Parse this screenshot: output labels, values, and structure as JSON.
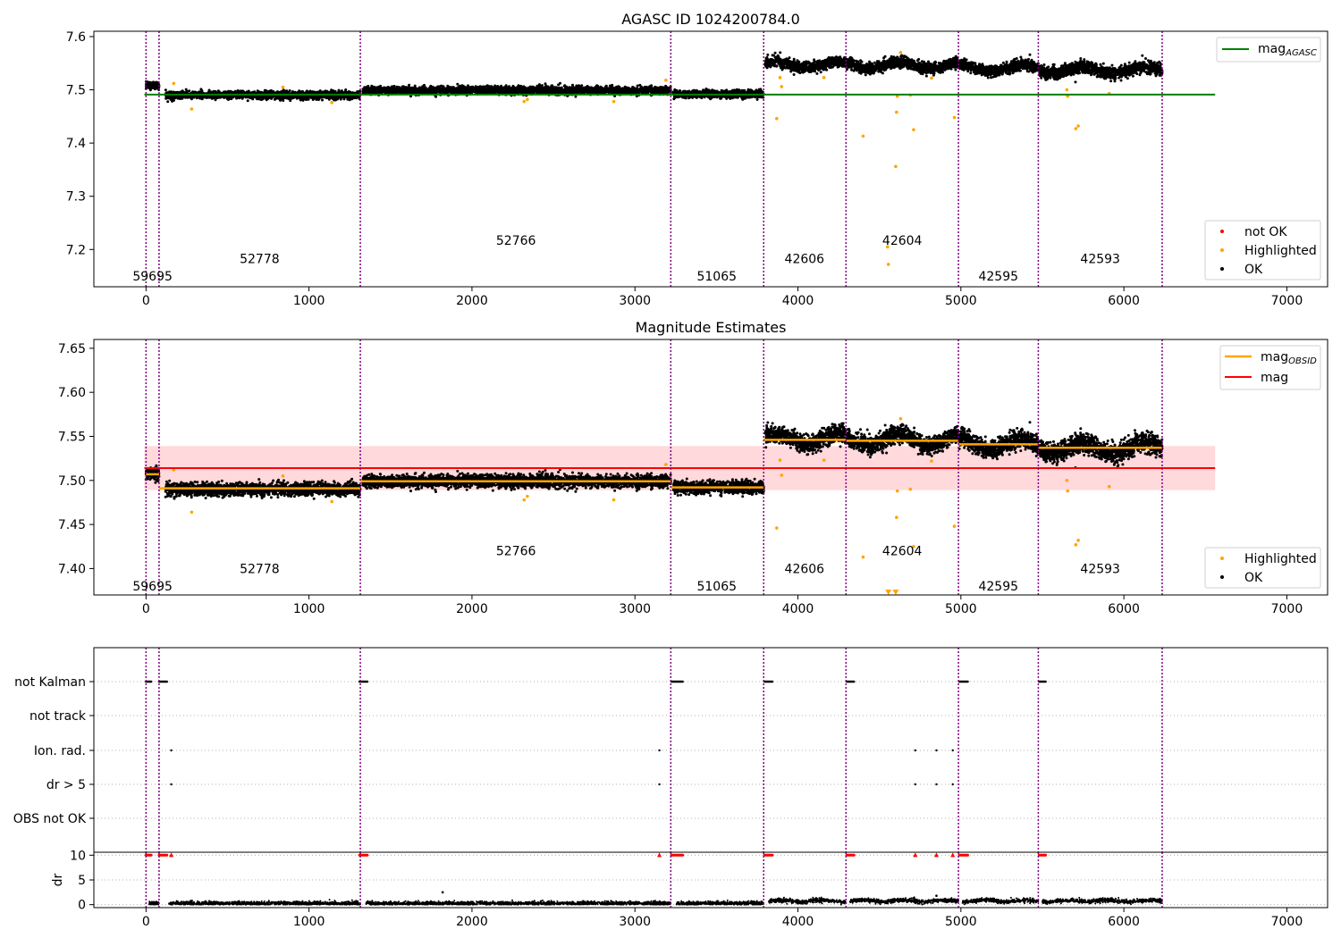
{
  "figure": {
    "title_top": "AGASC ID 1024200784.0",
    "title_middle": "Magnitude Estimates"
  },
  "colors": {
    "ok": "#000000",
    "highlighted": "#ffa500",
    "not_ok": "#ff0000",
    "agasc_line": "#008000",
    "obsid_line": "#ffa500",
    "mag_line": "#ff0000",
    "mag_band": "#ffd9dc",
    "obs_boundary": "#800080",
    "grid": "#b0b0b0"
  },
  "chart_data": [
    {
      "type": "scatter",
      "panel": "top",
      "title": "AGASC ID 1024200784.0",
      "xlim": [
        -320,
        7250
      ],
      "ylim": [
        7.13,
        7.61
      ],
      "xticks": [
        0,
        1000,
        2000,
        3000,
        4000,
        5000,
        6000,
        7000
      ],
      "yticks": [
        7.2,
        7.3,
        7.4,
        7.5,
        7.6
      ],
      "ytick_labels": [
        "7.2",
        "7.3",
        "7.4",
        "7.5",
        "7.6"
      ],
      "obs_boundaries": [
        0,
        80,
        1315,
        3220,
        3790,
        4295,
        4985,
        5475,
        6235
      ],
      "observations": [
        {
          "obsid": "59695",
          "start": 0,
          "end": 80,
          "mag": 7.508,
          "noise": 0.005
        },
        {
          "obsid": "52778",
          "start": 120,
          "end": 1315,
          "mag": 7.49,
          "noise": 0.005
        },
        {
          "obsid": "52766",
          "start": 1330,
          "end": 3220,
          "mag": 7.499,
          "noise": 0.005
        },
        {
          "obsid": "51065",
          "start": 3235,
          "end": 3790,
          "mag": 7.492,
          "noise": 0.005
        },
        {
          "obsid": "42606",
          "start": 3800,
          "end": 4295,
          "mag": 7.547,
          "noise": 0.007
        },
        {
          "obsid": "42604",
          "start": 4300,
          "end": 4985,
          "mag": 7.546,
          "noise": 0.007
        },
        {
          "obsid": "42595",
          "start": 4990,
          "end": 5475,
          "mag": 7.541,
          "noise": 0.007
        },
        {
          "obsid": "42593",
          "start": 5480,
          "end": 6235,
          "mag": 7.537,
          "noise": 0.008
        }
      ],
      "obs_labels": [
        {
          "text": "59695",
          "x": 40,
          "y": 7.15
        },
        {
          "text": "52778",
          "x": 697,
          "y": 7.183
        },
        {
          "text": "52766",
          "x": 2270,
          "y": 7.217
        },
        {
          "text": "51065",
          "x": 3502,
          "y": 7.15
        },
        {
          "text": "42606",
          "x": 4040,
          "y": 7.183
        },
        {
          "text": "42604",
          "x": 4640,
          "y": 7.217
        },
        {
          "text": "42595",
          "x": 5230,
          "y": 7.15
        },
        {
          "text": "42593",
          "x": 5855,
          "y": 7.183
        }
      ],
      "highlighted_points": [
        [
          170,
          7.512
        ],
        [
          280,
          7.464
        ],
        [
          840,
          7.505
        ],
        [
          1140,
          7.476
        ],
        [
          2320,
          7.478
        ],
        [
          2340,
          7.482
        ],
        [
          2870,
          7.478
        ],
        [
          3190,
          7.518
        ],
        [
          3870,
          7.446
        ],
        [
          3890,
          7.523
        ],
        [
          3900,
          7.506
        ],
        [
          4160,
          7.523
        ],
        [
          4400,
          7.413
        ],
        [
          4550,
          7.205
        ],
        [
          4555,
          7.172
        ],
        [
          4600,
          7.356
        ],
        [
          4605,
          7.458
        ],
        [
          4610,
          7.488
        ],
        [
          4630,
          7.57
        ],
        [
          4690,
          7.49
        ],
        [
          4710,
          7.425
        ],
        [
          4820,
          7.522
        ],
        [
          4960,
          7.448
        ],
        [
          5650,
          7.5
        ],
        [
          5655,
          7.488
        ],
        [
          5705,
          7.427
        ],
        [
          5720,
          7.432
        ],
        [
          5910,
          7.493
        ]
      ],
      "reference_line": {
        "label": "mag_AGASC",
        "value": 7.491,
        "x_range": [
          -10,
          6560
        ]
      },
      "legend_upper": [
        {
          "label": "mag",
          "sub": "AGASC",
          "color": "#008000"
        }
      ],
      "legend_lower": [
        {
          "label": "not OK",
          "color": "#ff0000"
        },
        {
          "label": "Highlighted",
          "color": "#ffa500"
        },
        {
          "label": "OK",
          "color": "#000000"
        }
      ]
    },
    {
      "type": "scatter",
      "panel": "middle",
      "title": "Magnitude Estimates",
      "xlim": [
        -320,
        7250
      ],
      "ylim": [
        7.37,
        7.66
      ],
      "xticks": [
        0,
        1000,
        2000,
        3000,
        4000,
        5000,
        6000,
        7000
      ],
      "yticks": [
        7.4,
        7.45,
        7.5,
        7.55,
        7.6,
        7.65
      ],
      "ytick_labels": [
        "7.40",
        "7.45",
        "7.50",
        "7.55",
        "7.60",
        "7.65"
      ],
      "mag_line": {
        "label": "mag",
        "value": 7.514,
        "band": [
          7.489,
          7.539
        ],
        "x_range": [
          -10,
          6560
        ]
      },
      "obsid_segments": [
        {
          "start": 0,
          "end": 80,
          "value": 7.507
        },
        {
          "start": 80,
          "end": 1315,
          "value": 7.491
        },
        {
          "start": 1315,
          "end": 3220,
          "value": 7.499
        },
        {
          "start": 3220,
          "end": 3790,
          "value": 7.492
        },
        {
          "start": 3790,
          "end": 4295,
          "value": 7.546
        },
        {
          "start": 4295,
          "end": 4985,
          "value": 7.545
        },
        {
          "start": 4985,
          "end": 5475,
          "value": 7.541
        },
        {
          "start": 5475,
          "end": 6235,
          "value": 7.537
        }
      ],
      "obs_labels": [
        {
          "text": "59695",
          "x": 40,
          "y": 7.38
        },
        {
          "text": "52778",
          "x": 697,
          "y": 7.4
        },
        {
          "text": "52766",
          "x": 2270,
          "y": 7.42
        },
        {
          "text": "51065",
          "x": 3502,
          "y": 7.38
        },
        {
          "text": "42606",
          "x": 4040,
          "y": 7.4
        },
        {
          "text": "42604",
          "x": 4640,
          "y": 7.42
        },
        {
          "text": "42595",
          "x": 5230,
          "y": 7.38
        },
        {
          "text": "42593",
          "x": 5855,
          "y": 7.4
        }
      ],
      "legend_upper": [
        {
          "label": "mag",
          "sub": "OBSID",
          "color": "#ffa500"
        },
        {
          "label": "mag",
          "sub": "",
          "color": "#ff0000"
        }
      ],
      "legend_lower": [
        {
          "label": "Highlighted",
          "color": "#ffa500"
        },
        {
          "label": "OK",
          "color": "#000000"
        }
      ]
    },
    {
      "type": "scatter",
      "panel": "flags",
      "categories": [
        "not Kalman",
        "not track",
        "Ion. rad.",
        "dr > 5",
        "OBS not OK"
      ],
      "not_kalman_ranges": [
        [
          0,
          35
        ],
        [
          80,
          130
        ],
        [
          1310,
          1360
        ],
        [
          3225,
          3295
        ],
        [
          3795,
          3845
        ],
        [
          4300,
          4345
        ],
        [
          4990,
          5045
        ],
        [
          5480,
          5520
        ]
      ],
      "ion_rad_points": [
        155,
        3150,
        4720,
        4850,
        4950
      ],
      "dr5_points": [
        155,
        3150,
        4720,
        4850,
        4950
      ]
    },
    {
      "type": "scatter",
      "panel": "dr",
      "ylabel": "dr",
      "ylim": [
        -0.6,
        10.6
      ],
      "yticks": [
        0,
        5,
        10
      ],
      "ytick_labels": [
        "0",
        "5",
        "10"
      ],
      "xticks": [
        0,
        1000,
        2000,
        3000,
        4000,
        5000,
        6000,
        7000
      ],
      "notok_at_10": [
        [
          0,
          35
        ],
        [
          80,
          130
        ],
        [
          1310,
          1360
        ],
        [
          3225,
          3295
        ],
        [
          3795,
          3845
        ],
        [
          4300,
          4345
        ],
        [
          4990,
          5045
        ],
        [
          5480,
          5520
        ]
      ],
      "notok_points": [
        155,
        3150,
        4720,
        4850,
        4950
      ],
      "outliers": [
        [
          1820,
          2.5
        ],
        [
          4850,
          1.8
        ],
        [
          4480,
          0.8
        ]
      ]
    }
  ]
}
